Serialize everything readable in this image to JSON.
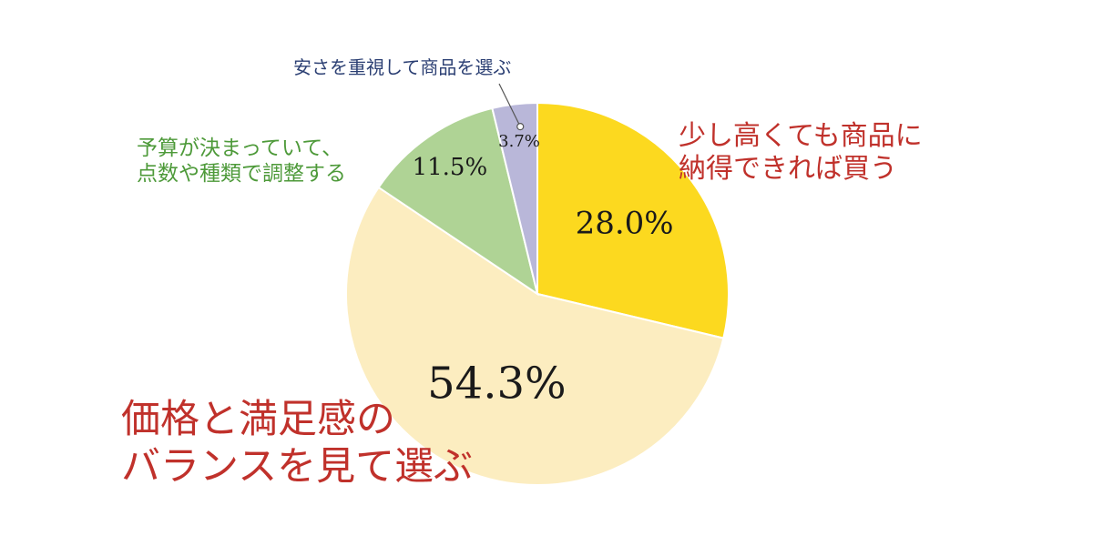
{
  "chart_data": {
    "type": "pie",
    "title": "",
    "start_angle_deg": 0,
    "direction": "clockwise",
    "legend": "none",
    "slices": [
      {
        "id": "slice-buy-if-satisfied",
        "value": 28.0,
        "value_label": "28.0%",
        "label_lines": [
          "少し高くても商品に",
          "納得できれば買う"
        ],
        "color": "#FCD91F",
        "label_color": "#C0312B"
      },
      {
        "id": "slice-balance",
        "value": 54.3,
        "value_label": "54.3%",
        "label_lines": [
          "価格と満足感の",
          "バランスを見て選ぶ"
        ],
        "color": "#FCEDC0",
        "label_color": "#C0312B"
      },
      {
        "id": "slice-fixed-budget",
        "value": 11.5,
        "value_label": "11.5%",
        "label_lines": [
          "予算が決まっていて、",
          "点数や種類で調整する"
        ],
        "color": "#AFD395",
        "label_color": "#4E9A3A"
      },
      {
        "id": "slice-cheap",
        "value": 3.7,
        "value_label": "3.7%",
        "label_lines": [
          "安さを重視して商品を選ぶ"
        ],
        "color": "#B9B7D9",
        "label_color": "#2B3F73"
      }
    ]
  }
}
